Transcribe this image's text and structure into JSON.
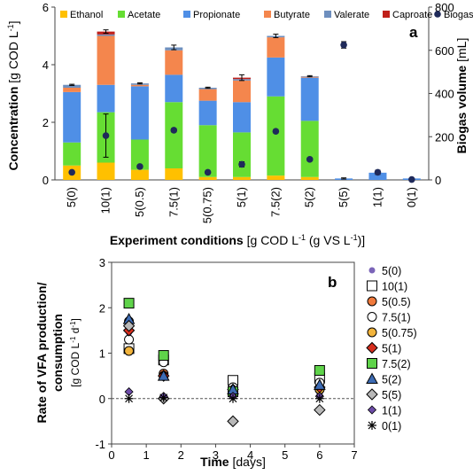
{
  "chart_data": [
    {
      "type": "bar",
      "panel_label": "a",
      "stacked": true,
      "categories": [
        "5(0)",
        "10(1)",
        "5(0.5)",
        "7.5(1)",
        "5(0.75)",
        "5(1)",
        "7.5(2)",
        "5(2)",
        "5(5)",
        "1(1)",
        "0(1)"
      ],
      "series": [
        {
          "name": "Ethanol",
          "color": "#FFC000",
          "values": [
            0.5,
            0.6,
            0.35,
            0.4,
            0.1,
            0.1,
            0.15,
            0.1,
            0.0,
            0.0,
            0.0
          ]
        },
        {
          "name": "Acetate",
          "color": "#66DD33",
          "values": [
            0.8,
            1.75,
            1.05,
            2.3,
            1.8,
            1.55,
            2.75,
            1.95,
            0.0,
            0.0,
            0.0
          ]
        },
        {
          "name": "Propionate",
          "color": "#4F8FE6",
          "values": [
            1.75,
            0.95,
            1.85,
            0.95,
            0.85,
            1.05,
            1.35,
            1.5,
            0.05,
            0.25,
            0.05
          ]
        },
        {
          "name": "Butyrate",
          "color": "#F4864D",
          "values": [
            0.15,
            1.7,
            0.05,
            0.85,
            0.4,
            0.75,
            0.7,
            0.03,
            0.0,
            0.0,
            0.0
          ]
        },
        {
          "name": "Valerate",
          "color": "#6E8FBE",
          "values": [
            0.1,
            0.05,
            0.05,
            0.1,
            0.05,
            0.05,
            0.05,
            0.02,
            0.0,
            0.0,
            0.0
          ]
        },
        {
          "name": "Caproate",
          "color": "#C0201A",
          "values": [
            0.0,
            0.1,
            0.0,
            0.0,
            0.0,
            0.05,
            0.0,
            0.0,
            0.0,
            0.0,
            0.0
          ]
        }
      ],
      "error_bars": [
        0.02,
        0.06,
        0.02,
        0.08,
        0.02,
        0.1,
        0.06,
        0.02,
        0.02,
        0.02,
        0.0
      ],
      "biogas": {
        "name": "Biogas",
        "color": "#1F2A5A",
        "values": [
          35,
          205,
          62,
          230,
          35,
          72,
          225,
          95,
          625,
          35,
          2
        ],
        "errors": [
          4,
          100,
          5,
          8,
          3,
          12,
          8,
          5,
          15,
          10,
          2
        ]
      },
      "ylabel_text": "Concentration",
      "ylabel_unit": "[g COD L",
      "ylabel_unit_sup": "-1",
      "ylabel_unit_end": "]",
      "ylim": [
        0,
        6
      ],
      "yticks": [
        0,
        2,
        4,
        6
      ],
      "y2label_text": "Biogas volume",
      "y2label_unit": "[mL]",
      "y2lim": [
        0,
        800
      ],
      "y2ticks": [
        0,
        200,
        400,
        600,
        800
      ],
      "xlabel_text": "Experiment conditions",
      "xlabel_unit": "[g COD L",
      "xlabel_unit_sup": "-1",
      "xlabel_unit_mid": " (g VS L",
      "xlabel_unit_sup2": "-1",
      "xlabel_unit_end": ")]",
      "legend_placement": "top",
      "grid": false
    },
    {
      "type": "scatter",
      "panel_label": "b",
      "x": [
        0.5,
        1.5,
        3.5,
        6
      ],
      "series": [
        {
          "name": "5(0)",
          "marker": "circle-small",
          "fill": "#7B64B8",
          "stroke": "#7B64B8",
          "values": [
            1.45,
            0.5,
            0.05,
            0.1
          ]
        },
        {
          "name": "10(1)",
          "marker": "square",
          "fill": "#FFFFFF",
          "stroke": "#000000",
          "values": [
            1.1,
            0.85,
            0.4,
            0.45
          ]
        },
        {
          "name": "5(0.5)",
          "marker": "circle",
          "fill": "#F07A3C",
          "stroke": "#000000",
          "values": [
            1.7,
            0.55,
            0.1,
            0.2
          ]
        },
        {
          "name": "7.5(1)",
          "marker": "circle",
          "fill": "#FFFFFF",
          "stroke": "#000000",
          "values": [
            1.3,
            0.8,
            0.25,
            0.35
          ]
        },
        {
          "name": "5(0.75)",
          "marker": "circle",
          "fill": "#F2B43C",
          "stroke": "#000000",
          "values": [
            1.05,
            0.5,
            0.1,
            0.2
          ]
        },
        {
          "name": "5(1)",
          "marker": "diamond",
          "fill": "#D62E1E",
          "stroke": "#000000",
          "values": [
            1.5,
            0.5,
            0.2,
            0.25
          ]
        },
        {
          "name": "7.5(2)",
          "marker": "square",
          "fill": "#5FD34A",
          "stroke": "#000000",
          "values": [
            2.1,
            0.95,
            0.15,
            0.62
          ]
        },
        {
          "name": "5(2)",
          "marker": "triangle",
          "fill": "#3D6BB3",
          "stroke": "#000000",
          "values": [
            1.75,
            0.5,
            0.2,
            0.3
          ]
        },
        {
          "name": "5(5)",
          "marker": "diamond",
          "fill": "#B8B8B8",
          "stroke": "#000000",
          "values": [
            1.6,
            0.0,
            -0.5,
            -0.25
          ]
        },
        {
          "name": "1(1)",
          "marker": "diamond-small",
          "fill": "#6D4BA8",
          "stroke": "#000000",
          "values": [
            0.15,
            0.05,
            0.05,
            0.05
          ]
        },
        {
          "name": "0(1)",
          "marker": "asterisk",
          "fill": "#000000",
          "stroke": "#000000",
          "values": [
            0.0,
            0.02,
            0.0,
            0.0
          ]
        }
      ],
      "ylabel_line1": "Rate of VFA production/",
      "ylabel_line2": "consumption",
      "ylabel_unit": "[g COD L",
      "ylabel_unit_sup": "-1",
      "ylabel_unit_mid": " d",
      "ylabel_unit_sup2": "-1",
      "ylabel_unit_end": "]",
      "ylim": [
        -1,
        3
      ],
      "yticks": [
        -1,
        0,
        1,
        2,
        3
      ],
      "xlabel_text": "Time",
      "xlabel_unit": "[days]",
      "xlim": [
        0,
        7
      ],
      "xticks": [
        0,
        1,
        2,
        3,
        4,
        5,
        6,
        7
      ],
      "zero_line": "dashed",
      "legend_placement": "right",
      "grid": false
    }
  ]
}
